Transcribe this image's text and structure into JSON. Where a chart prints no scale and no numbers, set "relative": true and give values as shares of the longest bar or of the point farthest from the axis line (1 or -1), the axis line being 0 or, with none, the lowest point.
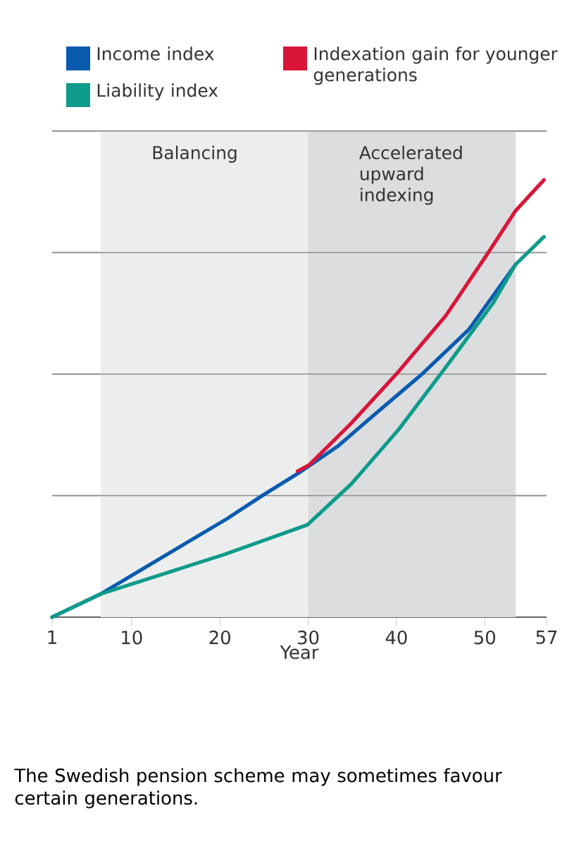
{
  "chart_data": {
    "type": "line",
    "relative": true,
    "xlabel": "Year",
    "xlim": [
      1,
      57
    ],
    "xticks": [
      1,
      10,
      20,
      30,
      40,
      50,
      57
    ],
    "grid": "y",
    "legend": "top",
    "line_style": "solid",
    "marker": "none",
    "series": [
      {
        "name": "Income index",
        "color": "#0a5bb0",
        "x": [
          1,
          6.5,
          11,
          16.3,
          20.8,
          24.8,
          29.1,
          33.3,
          37.6,
          42.9,
          48.2,
          53.5
        ],
        "values": [
          0,
          0.053,
          0.107,
          0.171,
          0.225,
          0.278,
          0.332,
          0.39,
          0.465,
          0.556,
          0.658,
          0.807
        ]
      },
      {
        "name": "Liability index",
        "color": "#0e9b8a",
        "x": [
          1,
          6.5,
          20.6,
          29.9,
          34.9,
          40.2,
          45.6,
          50.9,
          53.5,
          56.7
        ],
        "values": [
          0,
          0.053,
          0.144,
          0.211,
          0.305,
          0.428,
          0.572,
          0.717,
          0.807,
          0.87
        ]
      },
      {
        "name": "Indexation gain for younger generations",
        "color": "#d9153a",
        "x": [
          28.8,
          30.1,
          34.9,
          40.2,
          45.6,
          50.4,
          53.5,
          56.7
        ],
        "values": [
          0.334,
          0.348,
          0.444,
          0.561,
          0.69,
          0.834,
          0.93,
          1.0
        ]
      }
    ],
    "bands": [
      {
        "axis": "x",
        "from": 6.5,
        "to": 30,
        "label": "Balancing",
        "color": "#eceeed"
      },
      {
        "axis": "x",
        "from": 30,
        "to": 53.5,
        "label": "Accelerated upward indexing",
        "color": "#dcdddf"
      }
    ],
    "annotations": [
      "The Swedish pension scheme may sometimes favour certain generations."
    ]
  }
}
